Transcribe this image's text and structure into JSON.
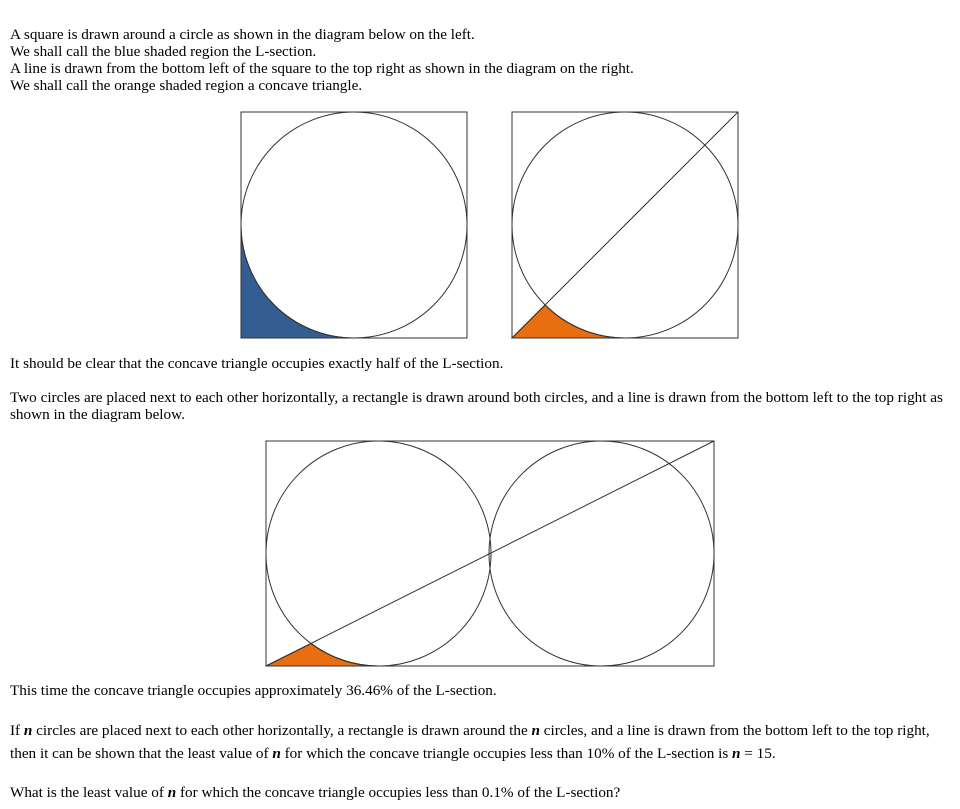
{
  "intro_lines": [
    "A square is drawn around a circle as shown in the diagram below on the left.",
    "We shall call the blue shaded region the L-section.",
    "A line is drawn from the bottom left of the square to the top right as shown in the diagram on the right.",
    "We shall call the orange shaded region a concave triangle."
  ],
  "half_statement": "It should be clear that the concave triangle occupies exactly half of the L-section.",
  "two_circles_statement": "Two circles are placed next to each other horizontally, a rectangle is drawn around both circles, and a line is drawn from the bottom left to the top right as shown in the diagram below.",
  "percent_statement": "This time the concave triangle occupies approximately 36.46% of the L-section.",
  "general": {
    "p1": "If ",
    "var": "n",
    "p2": " circles are placed next to each other horizontally, a rectangle is drawn around the ",
    "p3": " circles, and a line is drawn from the bottom left to the top right, then it can be shown that the least value of ",
    "p4": " for which the concave triangle occupies less than 10% of the L-section is ",
    "p5": " = 15."
  },
  "question": {
    "p1": "What is the least value of ",
    "var": "n",
    "p2": " for which the concave triangle occupies less than 0.1% of the L-section?"
  },
  "colors": {
    "l_section_blue": "#345d91",
    "concave_orange": "#e96e10",
    "stroke": "#333333"
  }
}
